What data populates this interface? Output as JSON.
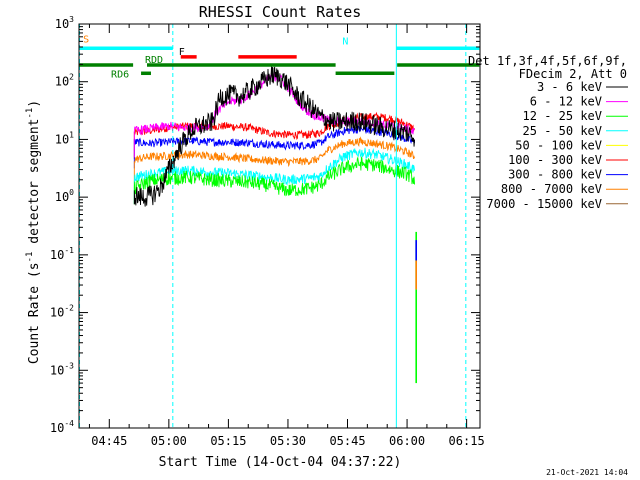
{
  "chart_data": {
    "type": "line",
    "title": "RHESSI Count Rates",
    "xlabel": "Start Time (14-Oct-04 04:37:22)",
    "ylabel": "Count Rate (s⁻¹ detector segment⁻¹)",
    "ylabel_parts": [
      "Count Rate (s",
      "-1",
      " detector segment",
      "-1",
      ")"
    ],
    "y_scale": "log",
    "xlim_minutes": [
      37.37,
      138.37
    ],
    "ylim": [
      0.0001,
      1000
    ],
    "x_ticks": [
      {
        "label": "04:45",
        "minutes": 45
      },
      {
        "label": "05:00",
        "minutes": 60
      },
      {
        "label": "05:15",
        "minutes": 75
      },
      {
        "label": "05:30",
        "minutes": 90
      },
      {
        "label": "05:45",
        "minutes": 105
      },
      {
        "label": "06:00",
        "minutes": 120
      },
      {
        "label": "06:15",
        "minutes": 135
      }
    ],
    "y_ticks": [
      {
        "base": "10",
        "exp": "3",
        "value": 1000
      },
      {
        "base": "10",
        "exp": "2",
        "value": 100
      },
      {
        "base": "10",
        "exp": "1",
        "value": 10
      },
      {
        "base": "10",
        "exp": "0",
        "value": 1
      },
      {
        "base": "10",
        "exp": "-1",
        "value": 0.1
      },
      {
        "base": "10",
        "exp": "-2",
        "value": 0.01
      },
      {
        "base": "10",
        "exp": "-3",
        "value": 0.001
      },
      {
        "base": "10",
        "exp": "-4",
        "value": 0.0001
      }
    ],
    "legend": {
      "position": "right",
      "header": [
        "Det 1f,3f,4f,5f,6f,9f,",
        "FDecim 2, Att 0"
      ],
      "entries": [
        {
          "label": "3 - 6 keV",
          "color": "#000000"
        },
        {
          "label": "6 - 12 keV",
          "color": "#ff00ff"
        },
        {
          "label": "12 - 25 keV",
          "color": "#00ff00"
        },
        {
          "label": "25 - 50 keV",
          "color": "#00ffff"
        },
        {
          "label": "50 - 100 keV",
          "color": "#ffff00"
        },
        {
          "label": "100 - 300 keV",
          "color": "#ff0000"
        },
        {
          "label": "300 - 800 keV",
          "color": "#0000ff"
        },
        {
          "label": "800 - 7000 keV",
          "color": "#ff8000"
        },
        {
          "label": "7000 - 15000 keV",
          "color": "#996633"
        }
      ]
    },
    "series": [
      {
        "name": "3 - 6 keV",
        "color": "#000000",
        "noise": 0.18,
        "points": [
          [
            51.3,
            1.1
          ],
          [
            52.5,
            1.0
          ],
          [
            54,
            1.0
          ],
          [
            56,
            1.1
          ],
          [
            58,
            1.5
          ],
          [
            60,
            3.0
          ],
          [
            63,
            8
          ],
          [
            66,
            15
          ],
          [
            69,
            18
          ],
          [
            71,
            20
          ],
          [
            73,
            55
          ],
          [
            76,
            60
          ],
          [
            78,
            55
          ],
          [
            81,
            75
          ],
          [
            84,
            105
          ],
          [
            86,
            130
          ],
          [
            88,
            120
          ],
          [
            90,
            90
          ],
          [
            92,
            60
          ],
          [
            95,
            40
          ],
          [
            98,
            25
          ],
          [
            101,
            20
          ],
          [
            104,
            20
          ],
          [
            107,
            21
          ],
          [
            110,
            19
          ],
          [
            114,
            16
          ],
          [
            118,
            14
          ],
          [
            120,
            13
          ],
          [
            122,
            11
          ]
        ]
      },
      {
        "name": "6 - 12 keV",
        "color": "#ff00ff",
        "noise": 0.08,
        "points": [
          [
            51.3,
            14
          ],
          [
            54,
            15
          ],
          [
            57,
            16
          ],
          [
            60,
            17
          ],
          [
            64,
            16
          ],
          [
            67,
            16
          ],
          [
            70,
            17
          ],
          [
            72,
            30
          ],
          [
            75,
            45
          ],
          [
            78,
            48
          ],
          [
            81,
            65
          ],
          [
            84,
            100
          ],
          [
            86,
            125
          ],
          [
            88,
            115
          ],
          [
            90,
            80
          ],
          [
            92,
            50
          ],
          [
            95,
            30
          ],
          [
            98,
            24
          ],
          [
            101,
            21
          ],
          [
            104,
            20
          ],
          [
            108,
            21
          ],
          [
            112,
            19
          ],
          [
            116,
            17
          ],
          [
            120,
            15
          ],
          [
            122,
            13
          ]
        ]
      },
      {
        "name": "100 - 300 keV",
        "color": "#ff0000",
        "noise": 0.07,
        "points": [
          [
            51.3,
            13
          ],
          [
            55,
            14
          ],
          [
            60,
            16
          ],
          [
            65,
            17
          ],
          [
            70,
            17
          ],
          [
            75,
            17
          ],
          [
            80,
            16
          ],
          [
            85,
            13
          ],
          [
            90,
            12
          ],
          [
            95,
            12
          ],
          [
            98,
            13
          ],
          [
            100,
            17
          ],
          [
            104,
            21
          ],
          [
            108,
            24
          ],
          [
            112,
            25
          ],
          [
            116,
            23
          ],
          [
            120,
            18
          ],
          [
            122,
            15
          ]
        ]
      },
      {
        "name": "300 - 800 keV",
        "color": "#0000ff",
        "noise": 0.07,
        "points": [
          [
            51.3,
            9
          ],
          [
            55,
            8.5
          ],
          [
            60,
            9
          ],
          [
            65,
            9.5
          ],
          [
            70,
            9
          ],
          [
            75,
            9
          ],
          [
            80,
            8.8
          ],
          [
            85,
            8.2
          ],
          [
            90,
            7.8
          ],
          [
            95,
            8
          ],
          [
            98,
            8.5
          ],
          [
            100,
            11
          ],
          [
            104,
            14
          ],
          [
            108,
            15
          ],
          [
            112,
            14
          ],
          [
            116,
            12.5
          ],
          [
            120,
            10
          ],
          [
            122,
            9
          ]
        ]
      },
      {
        "name": "800 - 7000 keV",
        "color": "#ff8000",
        "noise": 0.07,
        "points": [
          [
            51.3,
            4.5
          ],
          [
            55,
            5.0
          ],
          [
            60,
            5.2
          ],
          [
            65,
            5.5
          ],
          [
            70,
            5.2
          ],
          [
            75,
            5.0
          ],
          [
            80,
            4.6
          ],
          [
            85,
            4.3
          ],
          [
            90,
            4.1
          ],
          [
            95,
            4.2
          ],
          [
            98,
            4.6
          ],
          [
            100,
            6.5
          ],
          [
            104,
            8.5
          ],
          [
            108,
            9.2
          ],
          [
            112,
            8.5
          ],
          [
            116,
            7.5
          ],
          [
            120,
            6
          ],
          [
            122,
            5
          ]
        ]
      },
      {
        "name": "25 - 50 keV",
        "color": "#00ffff",
        "noise": 0.09,
        "points": [
          [
            51.3,
            2.2
          ],
          [
            55,
            2.5
          ],
          [
            60,
            2.8
          ],
          [
            65,
            2.9
          ],
          [
            70,
            2.7
          ],
          [
            75,
            2.6
          ],
          [
            80,
            2.4
          ],
          [
            85,
            2.2
          ],
          [
            90,
            2.0
          ],
          [
            95,
            2.1
          ],
          [
            98,
            2.3
          ],
          [
            100,
            3.2
          ],
          [
            104,
            5.0
          ],
          [
            108,
            6.0
          ],
          [
            112,
            5.5
          ],
          [
            116,
            4.5
          ],
          [
            120,
            3.6
          ],
          [
            122,
            3.0
          ]
        ]
      },
      {
        "name": "12 - 25 keV",
        "color": "#00ff00",
        "noise": 0.12,
        "points": [
          [
            51.3,
            1.4
          ],
          [
            55,
            1.9
          ],
          [
            60,
            2.1
          ],
          [
            65,
            2.2
          ],
          [
            70,
            2.0
          ],
          [
            75,
            1.9
          ],
          [
            80,
            1.8
          ],
          [
            85,
            1.6
          ],
          [
            90,
            1.3
          ],
          [
            95,
            1.4
          ],
          [
            98,
            1.6
          ],
          [
            100,
            2.2
          ],
          [
            104,
            3.2
          ],
          [
            108,
            3.8
          ],
          [
            112,
            3.6
          ],
          [
            116,
            3.0
          ],
          [
            120,
            2.5
          ],
          [
            122,
            2.0
          ]
        ]
      }
    ],
    "spikes": [
      {
        "minutes": 122.3,
        "range": [
          0.025,
          0.25
        ],
        "color": "#00ff00"
      },
      {
        "minutes": 122.3,
        "range": [
          0.025,
          0.08
        ],
        "color": "#ff8000"
      },
      {
        "minutes": 122.3,
        "range": [
          0.08,
          0.18
        ],
        "color": "#0000ff"
      },
      {
        "minutes": 122.3,
        "range": [
          0.0006,
          0.025
        ],
        "color": "#00ff00"
      }
    ],
    "vlines": [
      {
        "minutes": 37.5,
        "color": "#00ffff",
        "style": "dashed"
      },
      {
        "minutes": 61.0,
        "color": "#00ffff",
        "style": "dashed"
      },
      {
        "minutes": 117.3,
        "color": "#00ffff",
        "style": "solid"
      },
      {
        "minutes": 134.8,
        "color": "#00ffff",
        "style": "dashed"
      }
    ],
    "flag_bars": [
      {
        "start": 37.4,
        "end": 61.0,
        "value": 380,
        "color": "#00ffff",
        "label": "S",
        "label_color": "#ff8000"
      },
      {
        "start": 117.3,
        "end": 138.2,
        "value": 380,
        "color": "#00ffff",
        "label": "N",
        "label_color": "#00ffff"
      },
      {
        "start": 63.0,
        "end": 67.0,
        "value": 270,
        "color": "#ff0000",
        "label": "F",
        "label_color": "#000000"
      },
      {
        "start": 77.5,
        "end": 92.2,
        "value": 270,
        "color": "#ff0000",
        "label": "",
        "label_color": ""
      },
      {
        "start": 37.4,
        "end": 51.0,
        "value": 195,
        "color": "#008000",
        "label": "",
        "label_color": ""
      },
      {
        "start": 54.5,
        "end": 102.0,
        "value": 195,
        "color": "#008000",
        "label": "RDD",
        "label_color": "#008000"
      },
      {
        "start": 117.5,
        "end": 138.2,
        "value": 195,
        "color": "#008000",
        "label": "",
        "label_color": ""
      },
      {
        "start": 102.0,
        "end": 116.8,
        "value": 140,
        "color": "#008000",
        "label": "",
        "label_color": ""
      },
      {
        "start": 53.0,
        "end": 55.5,
        "value": 140,
        "color": "#008000",
        "label": "RD6",
        "label_color": "#008000"
      }
    ],
    "footer_stamp": "21-Oct-2021 14:04"
  }
}
